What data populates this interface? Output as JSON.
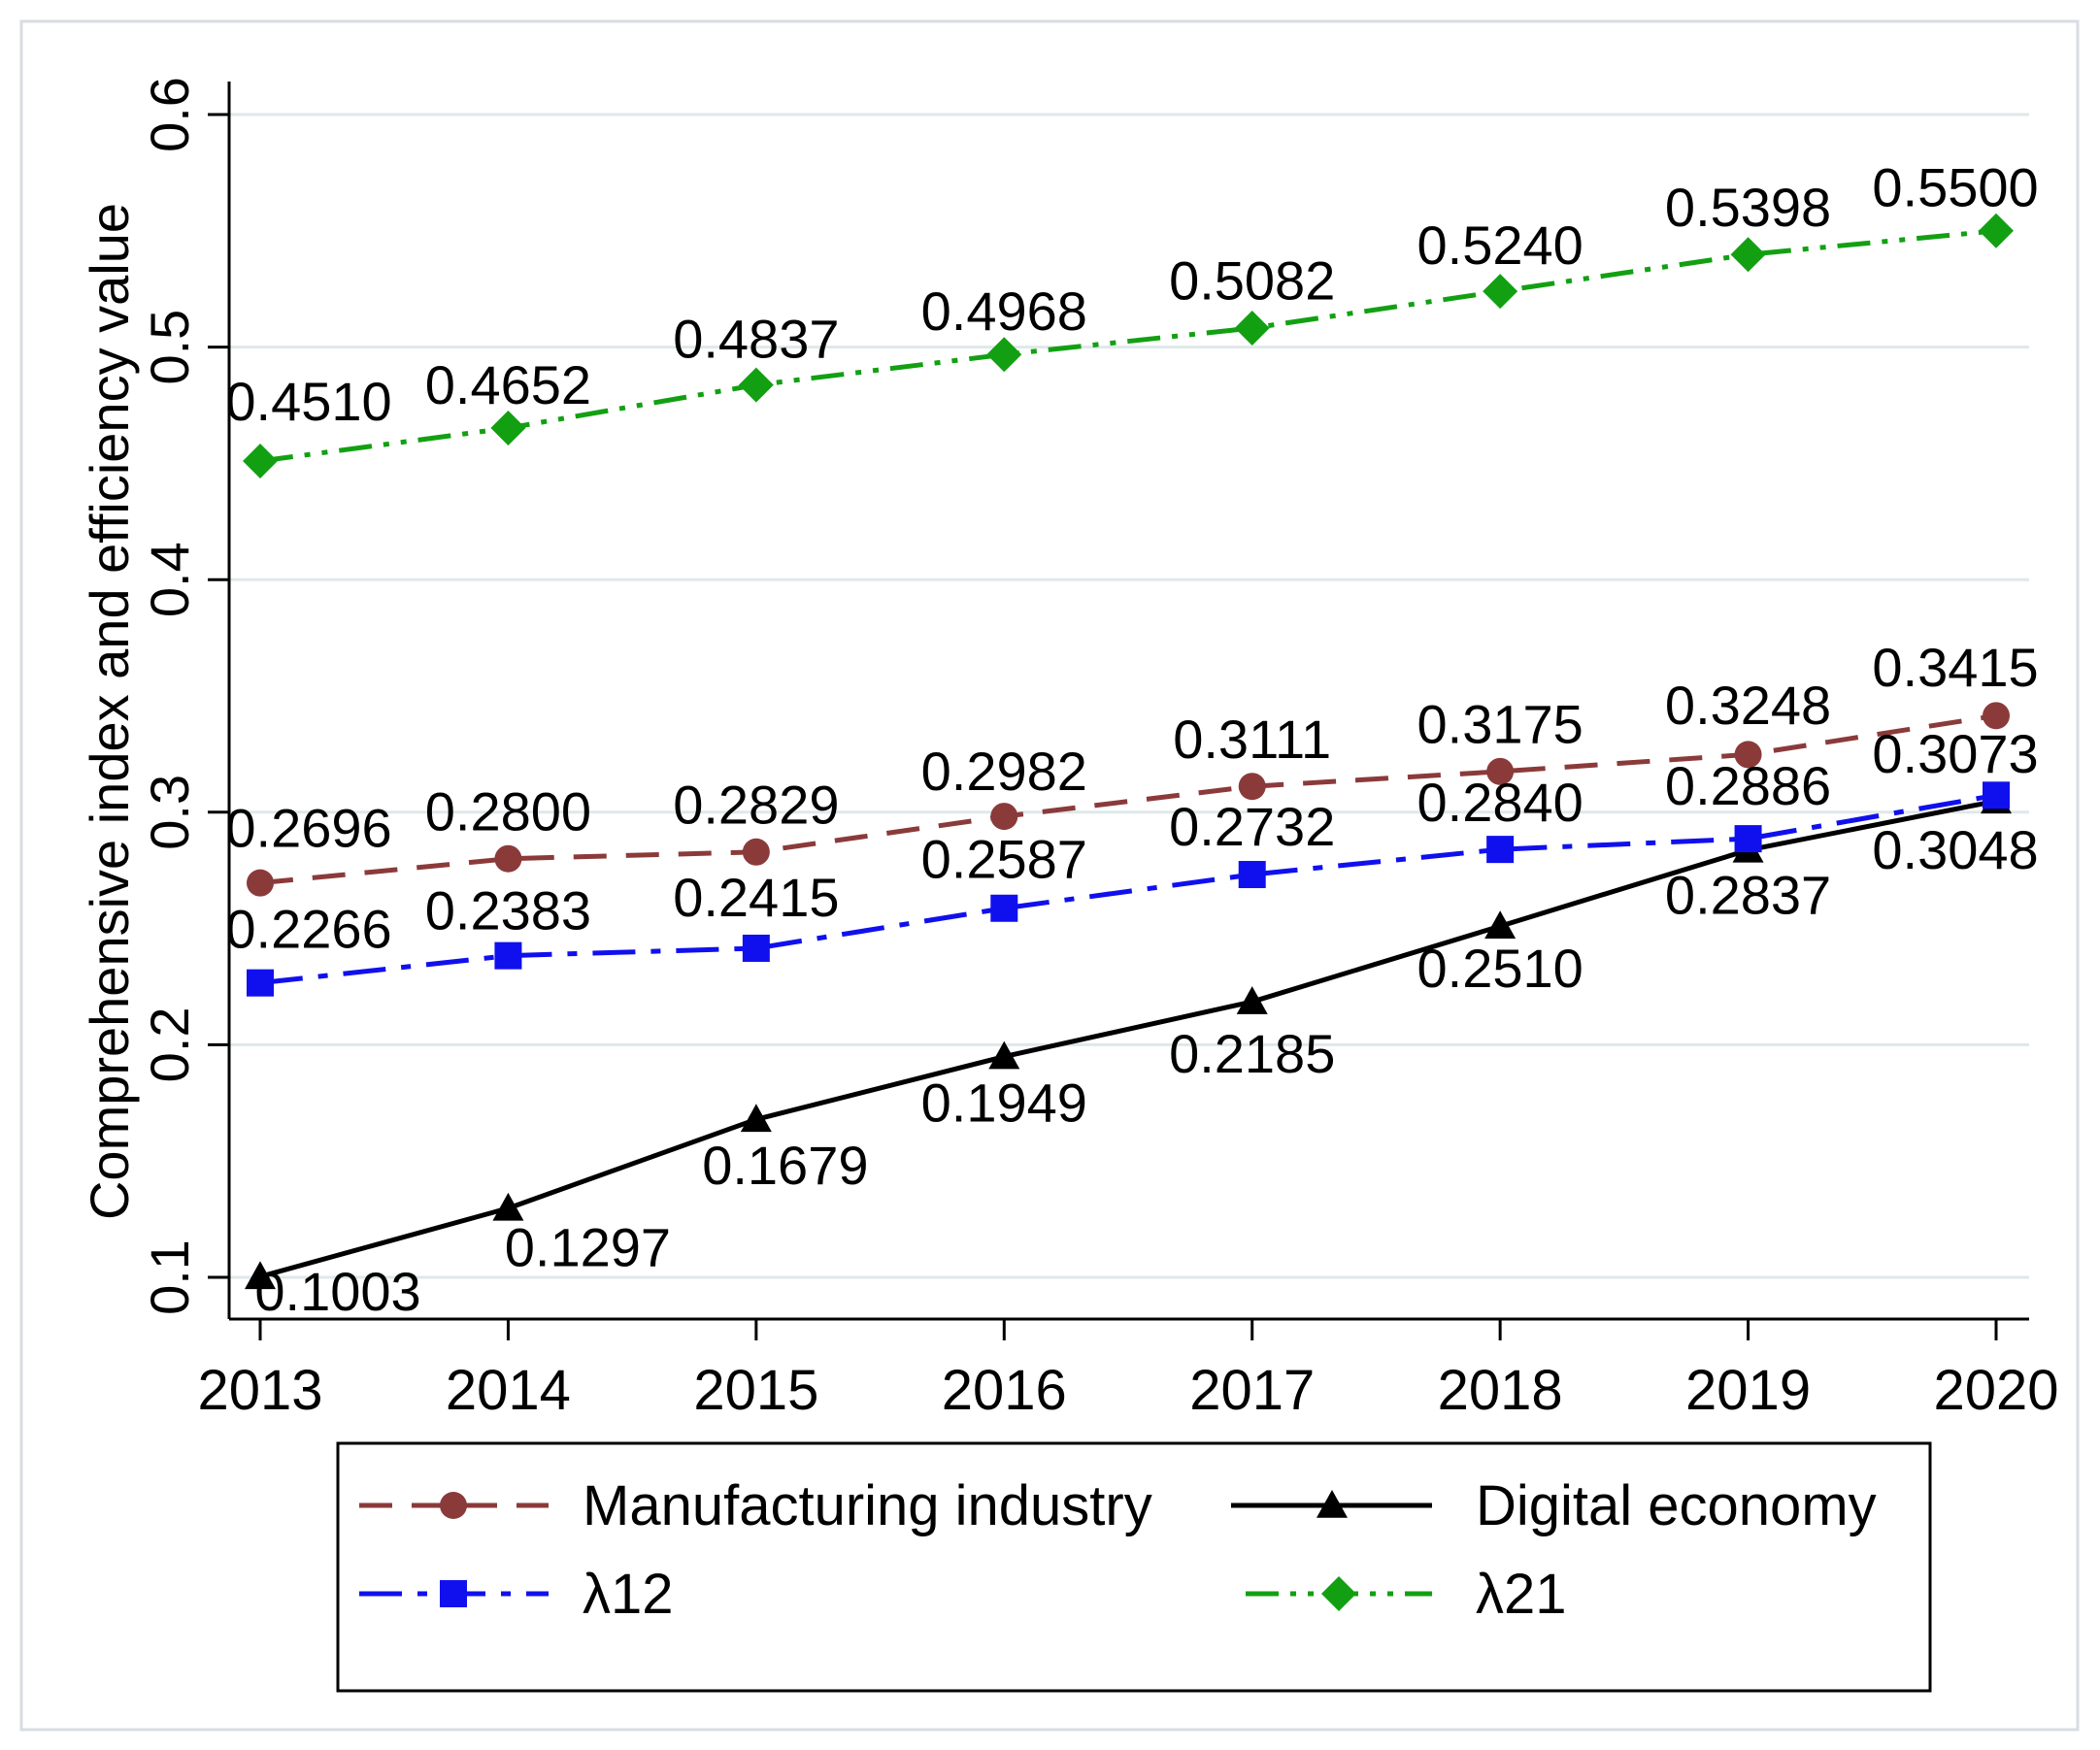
{
  "chart_data": {
    "type": "line",
    "title": "",
    "xlabel": "",
    "ylabel": "Comprehensive index and efficiency value",
    "x": [
      "2013",
      "2014",
      "2015",
      "2016",
      "2017",
      "2018",
      "2019",
      "2020"
    ],
    "ylim": [
      0.1,
      0.6
    ],
    "yticks": [
      0.1,
      0.2,
      0.3,
      0.4,
      0.5,
      0.6
    ],
    "ytick_labels": [
      "0.1",
      "0.2",
      "0.3",
      "0.4",
      "0.5",
      "0.6"
    ],
    "grid": true,
    "legend_position": "bottom",
    "series": [
      {
        "name": "Manufacturing industry",
        "color": "#8B3A3A",
        "line_style": "dashed",
        "marker": "circle",
        "values": [
          0.2696,
          0.28,
          0.2829,
          0.2982,
          0.3111,
          0.3175,
          0.3248,
          0.3415
        ],
        "labels": [
          "0.2696",
          "0.2800",
          "0.2829",
          "0.2982",
          "0.3111",
          "0.3175",
          "0.3248",
          "0.3415"
        ]
      },
      {
        "name": "Digital economy",
        "color": "#000000",
        "line_style": "solid",
        "marker": "triangle",
        "values": [
          0.1003,
          0.1297,
          0.1679,
          0.1949,
          0.2185,
          0.251,
          0.2837,
          0.3048
        ],
        "labels": [
          "0.1003",
          "0.1297",
          "0.1679",
          "0.1949",
          "0.2185",
          "0.2510",
          "0.2837",
          "0.3048"
        ]
      },
      {
        "name": "λ12",
        "color": "#1010EE",
        "line_style": "dash-dot",
        "marker": "square",
        "values": [
          0.2266,
          0.2383,
          0.2415,
          0.2587,
          0.2732,
          0.284,
          0.2886,
          0.3073
        ],
        "labels": [
          "0.2266",
          "0.2383",
          "0.2415",
          "0.2587",
          "0.2732",
          "0.2840",
          "0.2886",
          "0.3073"
        ]
      },
      {
        "name": "λ21",
        "color": "#12A012",
        "line_style": "dash-dot-dot",
        "marker": "diamond",
        "values": [
          0.451,
          0.4652,
          0.4837,
          0.4968,
          0.5082,
          0.524,
          0.5398,
          0.55
        ],
        "labels": [
          "0.4510",
          "0.4652",
          "0.4837",
          "0.4968",
          "0.5082",
          "0.5240",
          "0.5398",
          "0.5500"
        ]
      }
    ]
  }
}
